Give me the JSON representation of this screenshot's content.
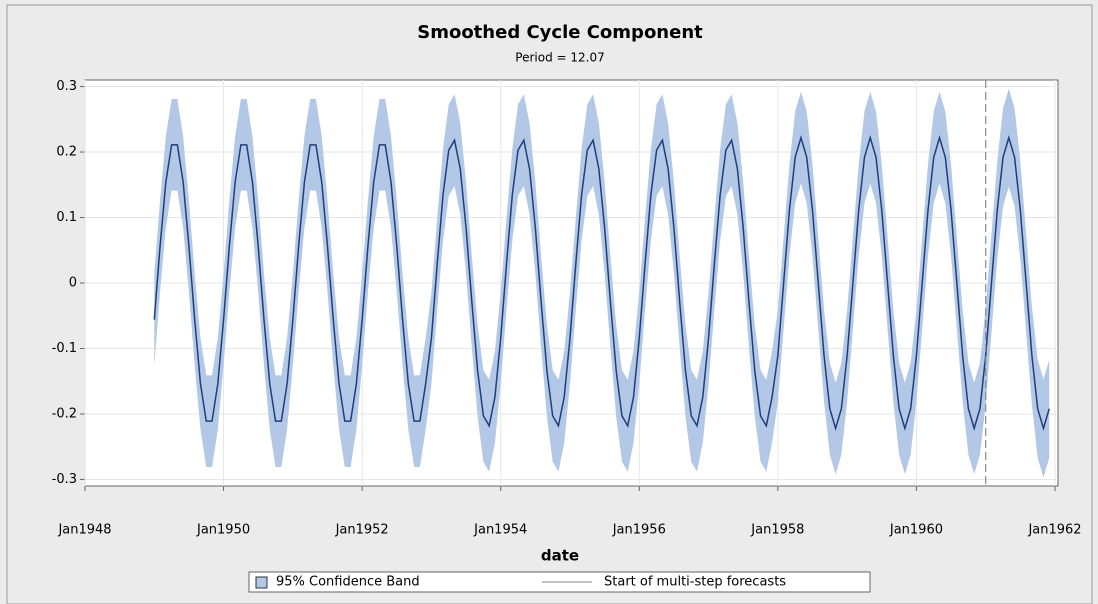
{
  "chart_data": {
    "type": "line",
    "title": "Smoothed Cycle Component",
    "subtitle": "Period = 12.07",
    "xlabel": "date",
    "x": [
      "1949-01",
      "1949-02",
      "1949-03",
      "1949-04",
      "1949-05",
      "1949-06",
      "1949-07",
      "1949-08",
      "1949-09",
      "1949-10",
      "1949-11",
      "1949-12",
      "1950-01",
      "1950-02",
      "1950-03",
      "1950-04",
      "1950-05",
      "1950-06",
      "1950-07",
      "1950-08",
      "1950-09",
      "1950-10",
      "1950-11",
      "1950-12",
      "1951-01",
      "1951-02",
      "1951-03",
      "1951-04",
      "1951-05",
      "1951-06",
      "1951-07",
      "1951-08",
      "1951-09",
      "1951-10",
      "1951-11",
      "1951-12",
      "1952-01",
      "1952-02",
      "1952-03",
      "1952-04",
      "1952-05",
      "1952-06",
      "1952-07",
      "1952-08",
      "1952-09",
      "1952-10",
      "1952-11",
      "1952-12",
      "1953-01",
      "1953-02",
      "1953-03",
      "1953-04",
      "1953-05",
      "1953-06",
      "1953-07",
      "1953-08",
      "1953-09",
      "1953-10",
      "1953-11",
      "1953-12",
      "1954-01",
      "1954-02",
      "1954-03",
      "1954-04",
      "1954-05",
      "1954-06",
      "1954-07",
      "1954-08",
      "1954-09",
      "1954-10",
      "1954-11",
      "1954-12",
      "1955-01",
      "1955-02",
      "1955-03",
      "1955-04",
      "1955-05",
      "1955-06",
      "1955-07",
      "1955-08",
      "1955-09",
      "1955-10",
      "1955-11",
      "1955-12",
      "1956-01",
      "1956-02",
      "1956-03",
      "1956-04",
      "1956-05",
      "1956-06",
      "1956-07",
      "1956-08",
      "1956-09",
      "1956-10",
      "1956-11",
      "1956-12",
      "1957-01",
      "1957-02",
      "1957-03",
      "1957-04",
      "1957-05",
      "1957-06",
      "1957-07",
      "1957-08",
      "1957-09",
      "1957-10",
      "1957-11",
      "1957-12",
      "1958-01",
      "1958-02",
      "1958-03",
      "1958-04",
      "1958-05",
      "1958-06",
      "1958-07",
      "1958-08",
      "1958-09",
      "1958-10",
      "1958-11",
      "1958-12",
      "1959-01",
      "1959-02",
      "1959-03",
      "1959-04",
      "1959-05",
      "1959-06",
      "1959-07",
      "1959-08",
      "1959-09",
      "1959-10",
      "1959-11",
      "1959-12",
      "1960-01",
      "1960-02",
      "1960-03",
      "1960-04",
      "1960-05",
      "1960-06",
      "1960-07",
      "1960-08",
      "1960-09",
      "1960-10",
      "1960-11",
      "1960-12",
      "1961-01",
      "1961-02",
      "1961-03",
      "1961-04",
      "1961-05",
      "1961-06",
      "1961-07",
      "1961-08",
      "1961-09",
      "1961-10",
      "1961-11",
      "1961-12"
    ],
    "series": [
      {
        "color": "#1f3f7a",
        "values": [
          -0.056,
          0.056,
          0.154,
          0.211,
          0.211,
          0.154,
          0.056,
          -0.056,
          -0.154,
          -0.211,
          -0.211,
          -0.154,
          -0.056,
          0.056,
          0.154,
          0.211,
          0.211,
          0.154,
          0.056,
          -0.056,
          -0.154,
          -0.211,
          -0.211,
          -0.154,
          -0.056,
          0.056,
          0.154,
          0.211,
          0.211,
          0.154,
          0.056,
          -0.056,
          -0.154,
          -0.211,
          -0.211,
          -0.154,
          -0.056,
          0.056,
          0.154,
          0.211,
          0.211,
          0.154,
          0.056,
          -0.056,
          -0.154,
          -0.211,
          -0.211,
          -0.154,
          -0.084,
          0.029,
          0.134,
          0.203,
          0.218,
          0.174,
          0.084,
          -0.029,
          -0.134,
          -0.203,
          -0.218,
          -0.174,
          -0.084,
          0.029,
          0.134,
          0.203,
          0.218,
          0.174,
          0.084,
          -0.029,
          -0.134,
          -0.203,
          -0.218,
          -0.174,
          -0.084,
          0.029,
          0.134,
          0.203,
          0.218,
          0.174,
          0.084,
          -0.029,
          -0.134,
          -0.203,
          -0.218,
          -0.174,
          -0.084,
          0.029,
          0.134,
          0.203,
          0.218,
          0.174,
          0.084,
          -0.029,
          -0.134,
          -0.203,
          -0.218,
          -0.174,
          -0.084,
          0.029,
          0.134,
          0.203,
          0.218,
          0.174,
          0.084,
          -0.029,
          -0.134,
          -0.203,
          -0.218,
          -0.174,
          -0.111,
          0,
          0.111,
          0.192,
          0.222,
          0.192,
          0.111,
          0,
          -0.111,
          -0.192,
          -0.222,
          -0.192,
          -0.111,
          0,
          0.111,
          0.192,
          0.222,
          0.192,
          0.111,
          0,
          -0.111,
          -0.192,
          -0.222,
          -0.192,
          -0.111,
          0,
          0.111,
          0.192,
          0.222,
          0.192,
          0.111,
          0,
          -0.111,
          -0.192,
          -0.222,
          -0.192,
          -0.111,
          0,
          0.111,
          0.192,
          0.222,
          0.192,
          0.111,
          0,
          -0.111,
          -0.192,
          -0.222,
          -0.192
        ]
      }
    ],
    "band": {
      "name": "95% Confidence Band",
      "color": "#b3c8e6",
      "lower": [
        -0.126,
        -0.014,
        0.084,
        0.141,
        0.141,
        0.084,
        -0.014,
        -0.126,
        -0.224,
        -0.281,
        -0.281,
        -0.224,
        -0.126,
        -0.014,
        0.084,
        0.141,
        0.141,
        0.084,
        -0.014,
        -0.126,
        -0.224,
        -0.281,
        -0.281,
        -0.224,
        -0.126,
        -0.014,
        0.084,
        0.141,
        0.141,
        0.084,
        -0.014,
        -0.126,
        -0.224,
        -0.281,
        -0.281,
        -0.224,
        -0.126,
        -0.014,
        0.084,
        0.141,
        0.141,
        0.084,
        -0.014,
        -0.126,
        -0.224,
        -0.281,
        -0.281,
        -0.224,
        -0.154,
        -0.041,
        0.064,
        0.133,
        0.148,
        0.104,
        0.014,
        -0.099,
        -0.204,
        -0.273,
        -0.288,
        -0.244,
        -0.154,
        -0.041,
        0.064,
        0.133,
        0.148,
        0.104,
        0.014,
        -0.099,
        -0.204,
        -0.273,
        -0.288,
        -0.244,
        -0.154,
        -0.041,
        0.064,
        0.133,
        0.148,
        0.104,
        0.014,
        -0.099,
        -0.204,
        -0.273,
        -0.288,
        -0.244,
        -0.154,
        -0.041,
        0.064,
        0.133,
        0.148,
        0.104,
        0.014,
        -0.099,
        -0.204,
        -0.273,
        -0.288,
        -0.244,
        -0.154,
        -0.041,
        0.064,
        0.133,
        0.148,
        0.104,
        0.014,
        -0.099,
        -0.204,
        -0.273,
        -0.288,
        -0.244,
        -0.181,
        -0.07,
        0.041,
        0.122,
        0.152,
        0.122,
        0.041,
        -0.07,
        -0.181,
        -0.262,
        -0.292,
        -0.262,
        -0.181,
        -0.07,
        0.041,
        0.122,
        0.152,
        0.122,
        0.041,
        -0.07,
        -0.181,
        -0.262,
        -0.292,
        -0.262,
        -0.181,
        -0.07,
        0.041,
        0.122,
        0.152,
        0.122,
        0.041,
        -0.07,
        -0.181,
        -0.262,
        -0.292,
        -0.262,
        -0.186,
        -0.075,
        0.036,
        0.117,
        0.147,
        0.117,
        0.036,
        -0.075,
        -0.186,
        -0.267,
        -0.297,
        -0.267
      ],
      "upper": [
        0.014,
        0.126,
        0.224,
        0.281,
        0.281,
        0.224,
        0.126,
        0.014,
        -0.084,
        -0.141,
        -0.141,
        -0.084,
        0.014,
        0.126,
        0.224,
        0.281,
        0.281,
        0.224,
        0.126,
        0.014,
        -0.084,
        -0.141,
        -0.141,
        -0.084,
        0.014,
        0.126,
        0.224,
        0.281,
        0.281,
        0.224,
        0.126,
        0.014,
        -0.084,
        -0.141,
        -0.141,
        -0.084,
        0.014,
        0.126,
        0.224,
        0.281,
        0.281,
        0.224,
        0.126,
        0.014,
        -0.084,
        -0.141,
        -0.141,
        -0.084,
        -0.014,
        0.099,
        0.204,
        0.273,
        0.288,
        0.244,
        0.154,
        0.041,
        -0.064,
        -0.133,
        -0.148,
        -0.104,
        -0.014,
        0.099,
        0.204,
        0.273,
        0.288,
        0.244,
        0.154,
        0.041,
        -0.064,
        -0.133,
        -0.148,
        -0.104,
        -0.014,
        0.099,
        0.204,
        0.273,
        0.288,
        0.244,
        0.154,
        0.041,
        -0.064,
        -0.133,
        -0.148,
        -0.104,
        -0.014,
        0.099,
        0.204,
        0.273,
        0.288,
        0.244,
        0.154,
        0.041,
        -0.064,
        -0.133,
        -0.148,
        -0.104,
        -0.014,
        0.099,
        0.204,
        0.273,
        0.288,
        0.244,
        0.154,
        0.041,
        -0.064,
        -0.133,
        -0.148,
        -0.104,
        -0.041,
        0.07,
        0.181,
        0.262,
        0.292,
        0.262,
        0.181,
        0.07,
        -0.041,
        -0.122,
        -0.152,
        -0.122,
        -0.041,
        0.07,
        0.181,
        0.262,
        0.292,
        0.262,
        0.181,
        0.07,
        -0.041,
        -0.122,
        -0.152,
        -0.122,
        -0.041,
        0.07,
        0.181,
        0.262,
        0.292,
        0.262,
        0.181,
        0.07,
        -0.041,
        -0.122,
        -0.152,
        -0.122,
        -0.036,
        0.075,
        0.186,
        0.267,
        0.297,
        0.267,
        0.186,
        0.075,
        -0.036,
        -0.117,
        -0.147,
        -0.117
      ]
    },
    "forecast_start": {
      "x": "1961-01",
      "label": "Start of multi-step forecasts",
      "color": "#888888"
    },
    "xlim": [
      "1948-01",
      "1962-01"
    ],
    "xticks": [
      {
        "value": "1948-01",
        "label": "Jan1948"
      },
      {
        "value": "1950-01",
        "label": "Jan1950"
      },
      {
        "value": "1952-01",
        "label": "Jan1952"
      },
      {
        "value": "1954-01",
        "label": "Jan1954"
      },
      {
        "value": "1956-01",
        "label": "Jan1956"
      },
      {
        "value": "1958-01",
        "label": "Jan1958"
      },
      {
        "value": "1960-01",
        "label": "Jan1960"
      },
      {
        "value": "1962-01",
        "label": "Jan1962"
      }
    ],
    "ylim": [
      -0.31,
      0.31
    ],
    "yticks": [
      -0.3,
      -0.2,
      -0.1,
      0,
      0.1,
      0.2,
      0.3
    ],
    "grid": true
  }
}
